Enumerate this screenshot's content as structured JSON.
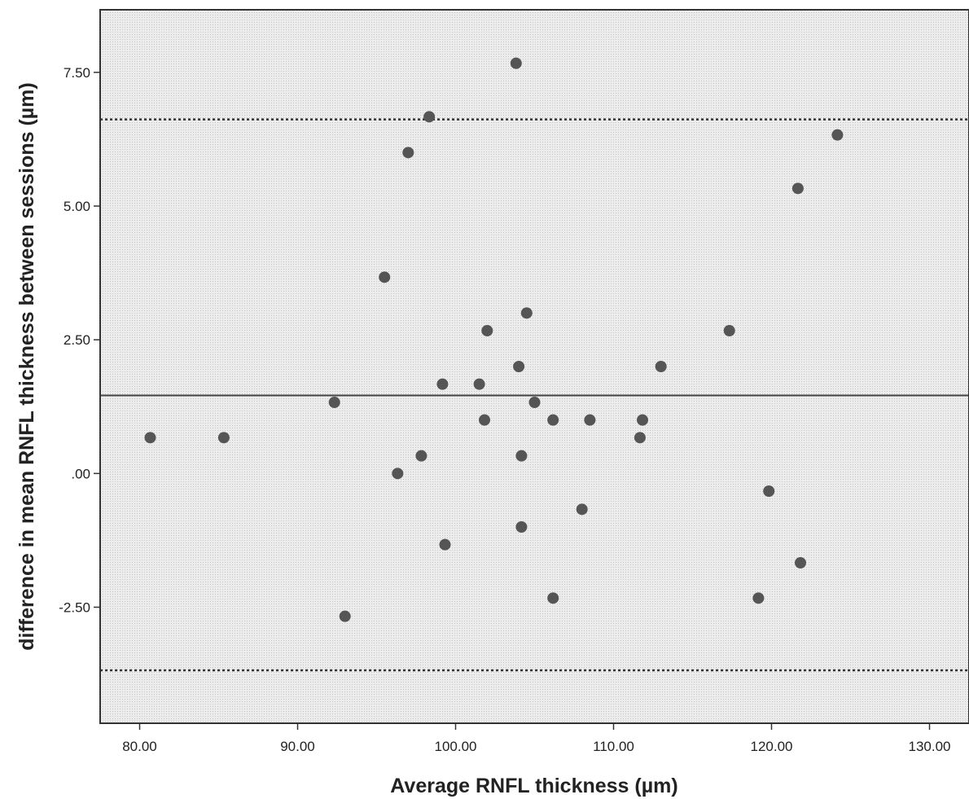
{
  "chart_data": {
    "type": "scatter",
    "title": "",
    "xlabel": "Average RNFL thickness (µm)",
    "ylabel": "difference in mean RNFL thickness between sessions (µm)",
    "xlim": [
      77.5,
      132.5
    ],
    "ylim": [
      -4.67,
      8.67
    ],
    "x_ticks": [
      80,
      90,
      100,
      110,
      120,
      130
    ],
    "x_tick_labels": [
      "80.00",
      "90.00",
      "100.00",
      "110.00",
      "120.00",
      "130.00"
    ],
    "y_ticks": [
      -2.5,
      0,
      2.5,
      5,
      7.5
    ],
    "y_tick_labels": [
      "-2.50",
      ".00",
      "2.50",
      "5.00",
      "7.50"
    ],
    "grid": false,
    "background_color": "#e9e9e9",
    "point_color": "#555555",
    "reference_lines": [
      {
        "kind": "mean",
        "y": 1.46,
        "style": "solid"
      },
      {
        "kind": "upper-limit",
        "y": 6.62,
        "style": "dotted"
      },
      {
        "kind": "lower-limit",
        "y": -3.68,
        "style": "dotted"
      }
    ],
    "series": [
      {
        "points": [
          [
            80.67,
            0.67
          ],
          [
            85.33,
            0.67
          ],
          [
            92.33,
            1.33
          ],
          [
            93.0,
            -2.67
          ],
          [
            95.5,
            3.67
          ],
          [
            96.33,
            0.0
          ],
          [
            97.0,
            6.0
          ],
          [
            97.83,
            0.33
          ],
          [
            98.33,
            6.67
          ],
          [
            99.17,
            1.67
          ],
          [
            99.33,
            -1.33
          ],
          [
            101.5,
            1.67
          ],
          [
            101.83,
            1.0
          ],
          [
            102.0,
            2.67
          ],
          [
            103.83,
            7.67
          ],
          [
            104.0,
            2.0
          ],
          [
            104.17,
            0.33
          ],
          [
            104.17,
            -1.0
          ],
          [
            104.5,
            3.0
          ],
          [
            105.0,
            1.33
          ],
          [
            106.17,
            1.0
          ],
          [
            106.17,
            -2.33
          ],
          [
            108.0,
            -0.67
          ],
          [
            108.5,
            1.0
          ],
          [
            111.67,
            0.67
          ],
          [
            111.83,
            1.0
          ],
          [
            113.0,
            2.0
          ],
          [
            117.33,
            2.67
          ],
          [
            119.17,
            -2.33
          ],
          [
            119.83,
            -0.33
          ],
          [
            121.67,
            5.33
          ],
          [
            121.83,
            -1.67
          ],
          [
            124.17,
            6.33
          ]
        ]
      }
    ]
  }
}
